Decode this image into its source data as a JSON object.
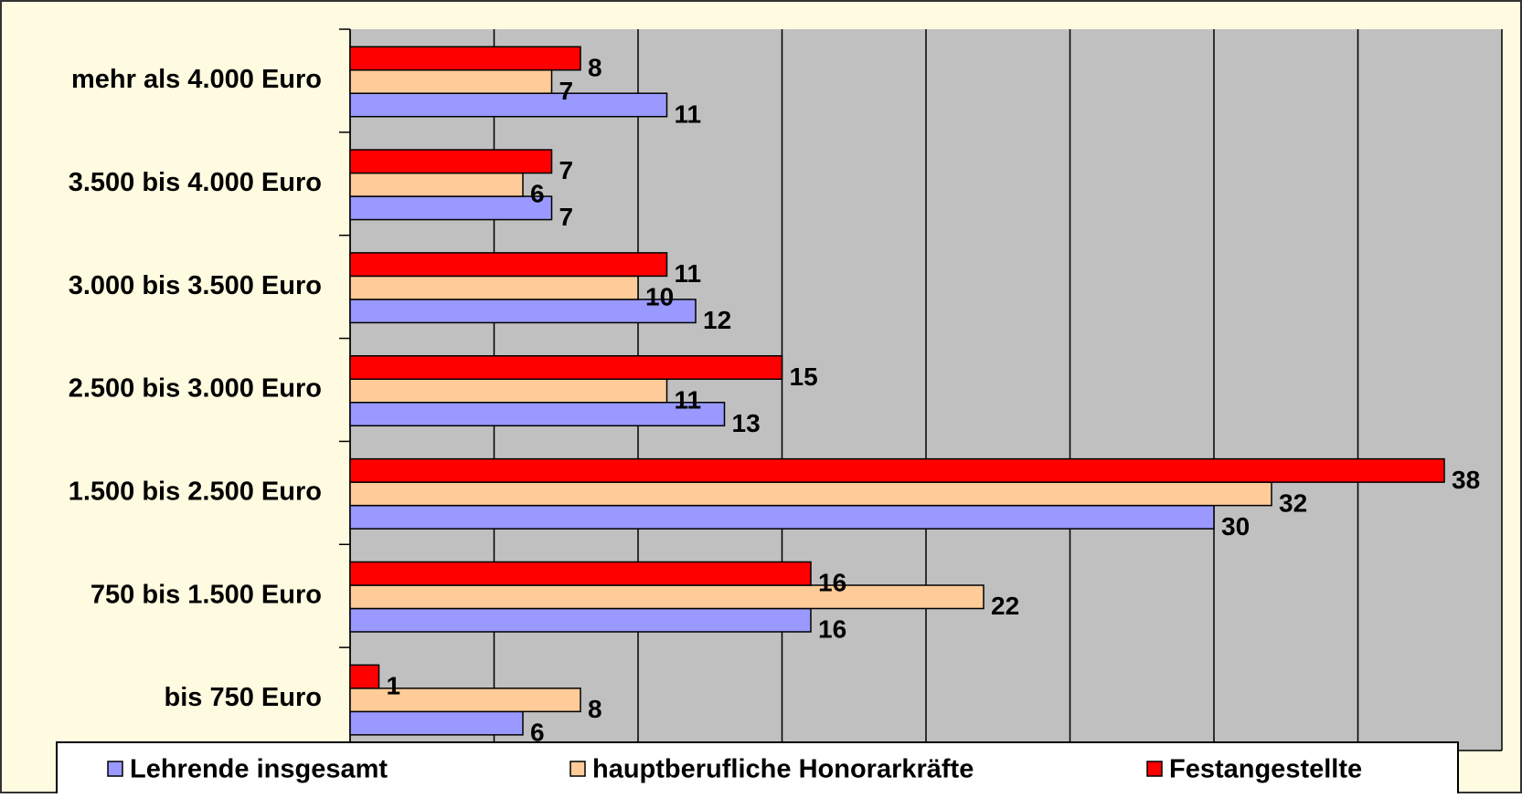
{
  "chart_data": {
    "type": "hbar",
    "categories": [
      "mehr als 4.000 Euro",
      "3.500 bis 4.000 Euro",
      "3.000 bis 3.500 Euro",
      "2.500 bis 3.000 Euro",
      "1.500 bis 2.500 Euro",
      "750 bis 1.500 Euro",
      "bis 750 Euro"
    ],
    "series": [
      {
        "name": "Lehrende insgesamt",
        "color": "#9999ff",
        "values": [
          11,
          7,
          12,
          13,
          30,
          16,
          6
        ]
      },
      {
        "name": "hauptberufliche Honorarkräfte",
        "color": "#ffcc99",
        "values": [
          7,
          6,
          10,
          11,
          32,
          22,
          8
        ]
      },
      {
        "name": "Festangestellte",
        "color": "#ff0000",
        "values": [
          8,
          7,
          11,
          15,
          38,
          16,
          1
        ]
      }
    ],
    "xlim": [
      0,
      40
    ],
    "xticks": [
      0,
      5,
      10,
      15,
      20,
      25,
      30,
      35,
      40
    ],
    "grid": true,
    "legend": "bottom"
  }
}
